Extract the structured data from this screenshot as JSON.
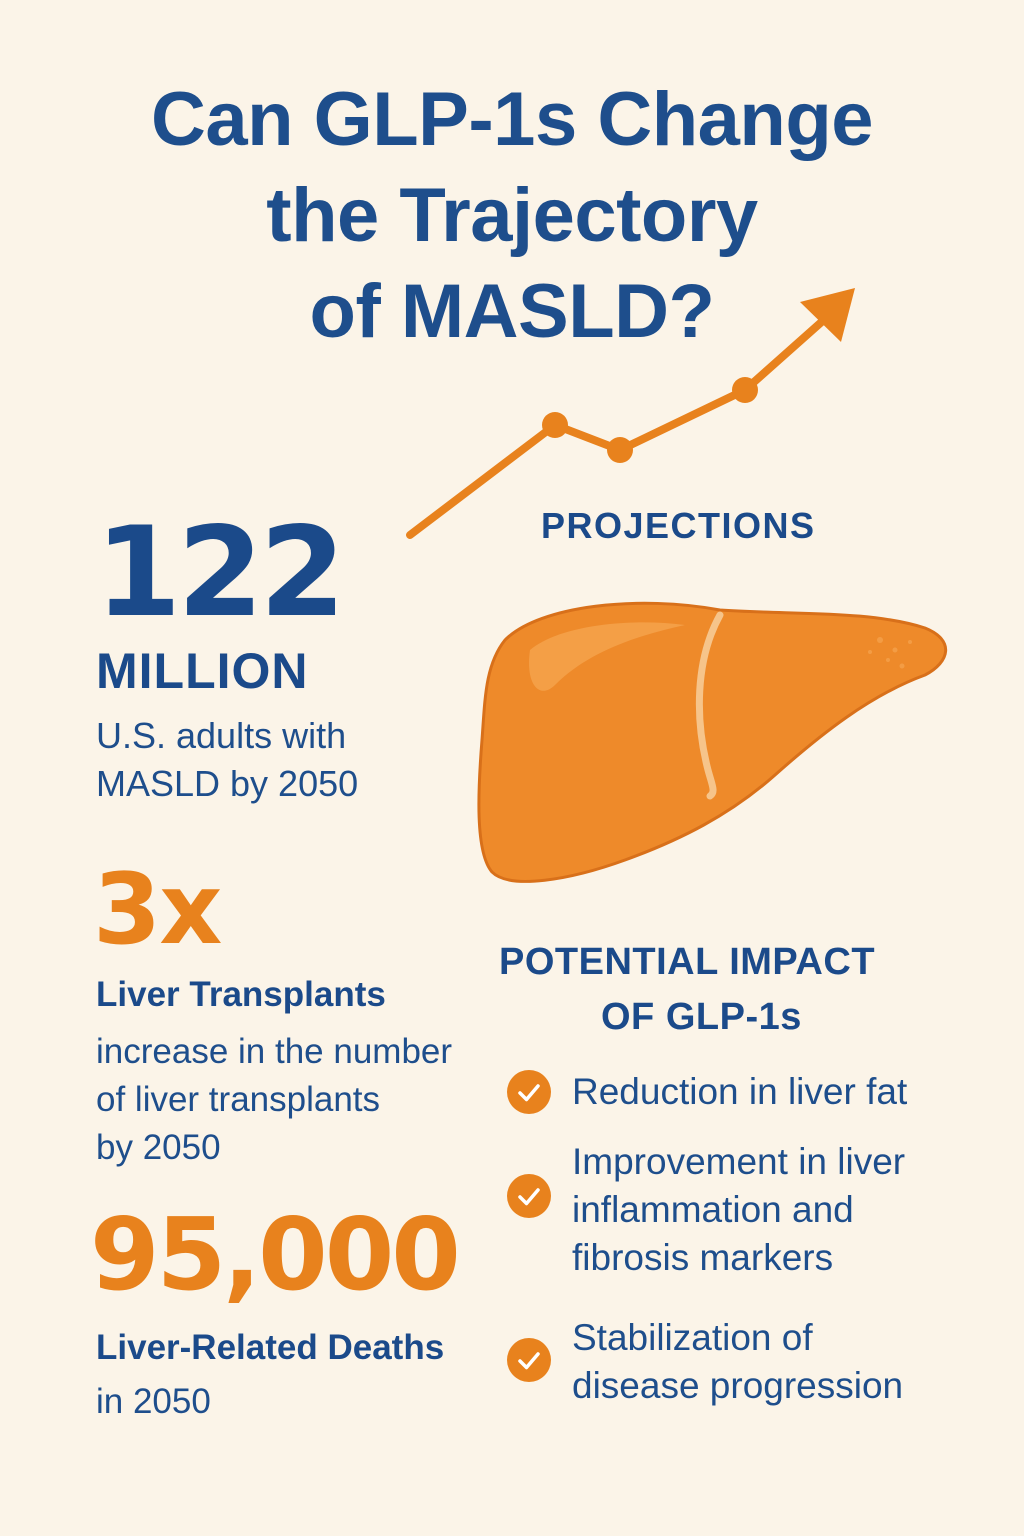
{
  "title": {
    "line1": "Can GLP-1s Change",
    "line2": "the Trajectory",
    "line3": "of MASLD?"
  },
  "projections": {
    "label": "PROJECTIONS",
    "trend_icon": "trend-up-arrow-icon",
    "liver_icon": "liver-icon"
  },
  "stats": {
    "adults": {
      "value": "122",
      "unit": "MILLION",
      "desc_line1": "U.S. adults with",
      "desc_line2": "MASLD by 2050"
    },
    "transplants": {
      "value": "3x",
      "label": "Liver Transplants",
      "desc_line1": "increase in the number",
      "desc_line2": "of liver transplants",
      "desc_line3": "by 2050"
    },
    "deaths": {
      "value": "95,000",
      "label": "Liver-Related Deaths",
      "desc": "in 2050"
    }
  },
  "impact": {
    "heading_line1": "POTENTIAL IMPACT",
    "heading_line2": "OF GLP-1s",
    "items": [
      {
        "lines": [
          "Reduction in liver fat"
        ]
      },
      {
        "lines": [
          "Improvement in liver",
          "inflammation and",
          "fibrosis markers"
        ]
      },
      {
        "lines": [
          "Stabilization of",
          "disease progression"
        ]
      }
    ]
  },
  "colors": {
    "background": "#fbf4e8",
    "navy": "#1b4a8a",
    "orange": "#e8821d"
  }
}
